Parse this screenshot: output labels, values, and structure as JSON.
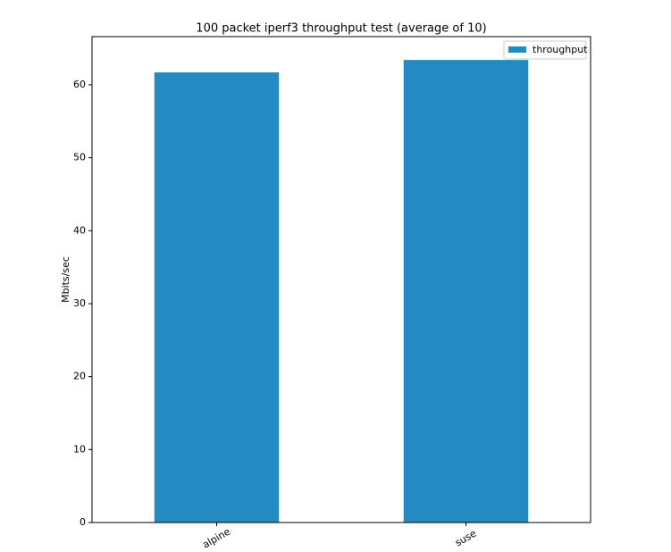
{
  "chart_data": {
    "type": "bar",
    "title": "100 packet iperf3 throughput test (average of 10)",
    "y_label": "Mbits/sec",
    "categories": [
      "alpine",
      "suse"
    ],
    "series": [
      {
        "name": "throughput",
        "color": "#238bc2",
        "values": [
          61.7,
          63.4
        ]
      }
    ],
    "ylim": [
      0,
      66.6
    ],
    "yticks": [
      0,
      10,
      20,
      30,
      40,
      50,
      60
    ],
    "grid": false,
    "legend": "upper right"
  }
}
